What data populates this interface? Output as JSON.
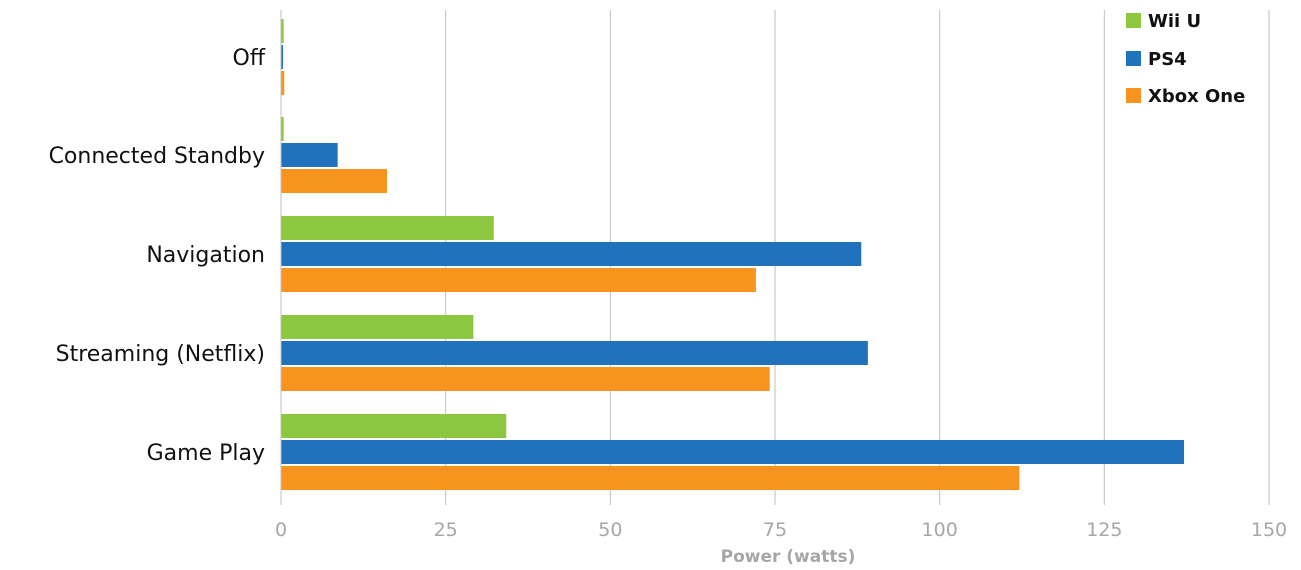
{
  "chart_data": {
    "type": "bar",
    "orientation": "horizontal",
    "categories": [
      "Off",
      "Connected Standby",
      "Navigation",
      "Streaming (Netflix)",
      "Game Play"
    ],
    "series": [
      {
        "name": "Wii U",
        "color": "#8dc63f",
        "values": [
          0.4,
          0.4,
          32.3,
          29.2,
          34.2
        ]
      },
      {
        "name": "PS4",
        "color": "#1f72bb",
        "values": [
          0.3,
          8.6,
          88.1,
          89.1,
          137.1
        ]
      },
      {
        "name": "Xbox One",
        "color": "#f7941d",
        "values": [
          0.5,
          16.1,
          72.1,
          74.2,
          112.1
        ]
      }
    ],
    "xlabel": "Power (watts)",
    "ylabel": "",
    "xlim": [
      0,
      150
    ],
    "ticks": [
      0,
      25,
      50,
      75,
      100,
      125,
      150
    ],
    "tick_labels": [
      "0",
      "25",
      "50",
      "75",
      "100",
      "125",
      "150"
    ],
    "grid": true,
    "legend_position": "top-right"
  }
}
